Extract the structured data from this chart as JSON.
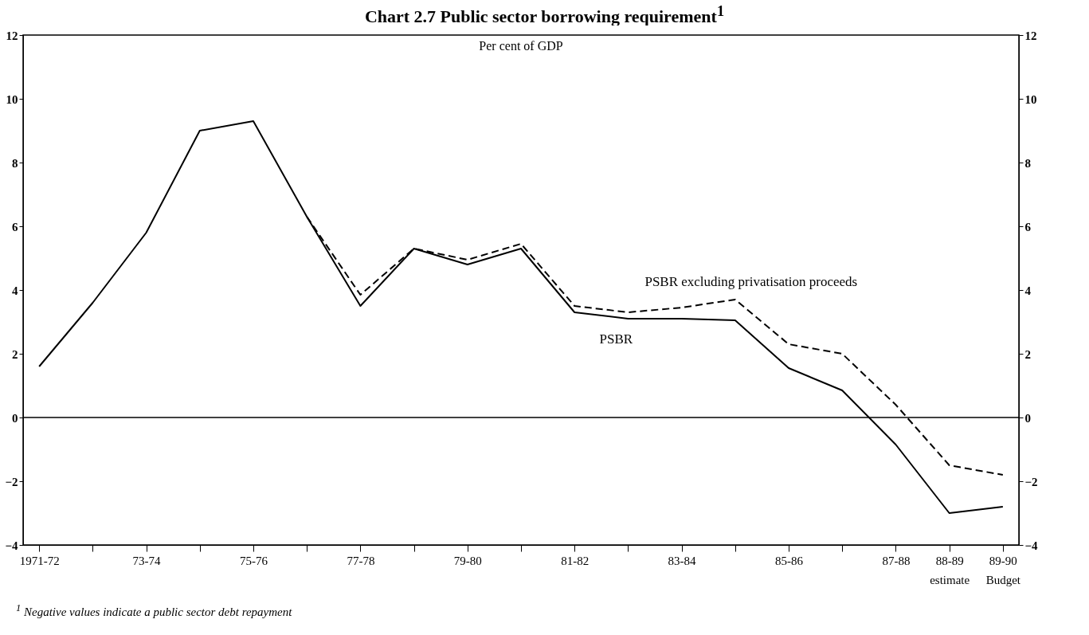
{
  "chart_data": {
    "type": "line",
    "title": "Chart 2.7    Public sector borrowing requirement$^{1}$",
    "annotations": [
      "Per cent of GDP",
      "$^{1}$  Negative values indicate a public sector debt repayment"
    ],
    "categories": [
      "1971-72",
      null,
      "73-74",
      null,
      "75-76",
      null,
      "77-78",
      null,
      "79-80",
      null,
      "81-82",
      null,
      "83-84",
      null,
      "85-86",
      null,
      "87-88",
      "88-89\nestimate",
      "89-90\nBudget"
    ],
    "series": [
      {
        "name": "PSBR excluding privatisation proceeds",
        "color": "#000000",
        "line_style": "dashed",
        "values": [
          null,
          null,
          null,
          null,
          null,
          6.3,
          3.85,
          5.3,
          4.95,
          5.45,
          3.5,
          3.3,
          3.45,
          3.7,
          2.3,
          2.0,
          0.4,
          -1.5,
          -1.8
        ]
      },
      {
        "name": "PSBR",
        "color": "#000000",
        "line_style": "solid",
        "values": [
          1.6,
          3.6,
          5.8,
          9.0,
          9.3,
          6.3,
          3.5,
          5.3,
          4.8,
          5.3,
          3.3,
          3.1,
          3.1,
          3.05,
          1.55,
          0.85,
          -0.85,
          -3.0,
          -2.8
        ]
      }
    ],
    "ylim": [
      -4,
      12
    ],
    "yticks": [
      -4,
      -2,
      0,
      2,
      4,
      6,
      8,
      10,
      12
    ],
    "y2lim": [
      -4,
      12
    ],
    "y2ticks": [
      -4,
      -2,
      0,
      2,
      4,
      6,
      8,
      10,
      12
    ],
    "ref_lines": [
      {
        "axis": "y",
        "value": 0,
        "color": "#000000"
      }
    ],
    "grid": false,
    "legend": false,
    "marker": "none"
  }
}
